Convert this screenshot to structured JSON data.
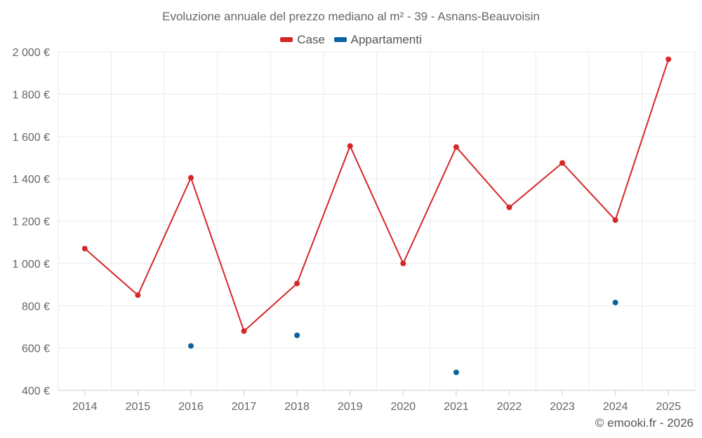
{
  "chart_data": {
    "type": "line",
    "title": "Evoluzione annuale del prezzo mediano al m² - 39 - Asnans-Beauvoisin",
    "categories": [
      "2014",
      "2015",
      "2016",
      "2017",
      "2018",
      "2019",
      "2020",
      "2021",
      "2022",
      "2023",
      "2024",
      "2025"
    ],
    "series": [
      {
        "name": "Case",
        "color": "#d62728",
        "style": "line-with-markers",
        "values": [
          1070,
          850,
          1405,
          680,
          905,
          1555,
          1000,
          1550,
          1265,
          1475,
          1205,
          1965
        ]
      },
      {
        "name": "Appartamenti",
        "color": "#0b64a0",
        "style": "markers-only",
        "values": [
          null,
          null,
          610,
          null,
          660,
          null,
          null,
          485,
          null,
          null,
          815,
          null
        ]
      }
    ],
    "ylim": [
      400,
      2000
    ],
    "yticks": [
      400,
      600,
      800,
      1000,
      1200,
      1400,
      1600,
      1800,
      2000
    ],
    "ytick_labels": [
      "400 €",
      "600 €",
      "800 €",
      "1 000 €",
      "1 200 €",
      "1 400 €",
      "1 600 €",
      "1 800 €",
      "2 000 €"
    ],
    "xlabel": "",
    "ylabel": "",
    "grid": true,
    "legend_position": "top-center"
  },
  "credit": "© emooki.fr - 2026"
}
